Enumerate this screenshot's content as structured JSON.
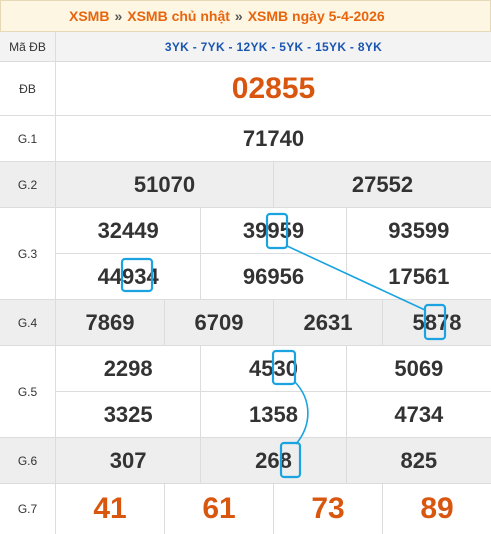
{
  "breadcrumb": {
    "item1": "XSMB",
    "sep": "»",
    "item2": "XSMB chủ nhật",
    "item3": "XSMB ngày 5-4-2026"
  },
  "codes_row": {
    "label": "Mã ĐB",
    "value": "3YK - 7YK - 12YK - 5YK - 15YK - 8YK"
  },
  "prizes": {
    "db": {
      "label": "ĐB",
      "numbers": [
        "02855"
      ]
    },
    "g1": {
      "label": "G.1",
      "numbers": [
        "71740"
      ]
    },
    "g2": {
      "label": "G.2",
      "numbers": [
        "51070",
        "27552"
      ]
    },
    "g3": {
      "label": "G.3",
      "numbers": [
        "32449",
        "39959",
        "93599",
        "44934",
        "96956",
        "17561"
      ]
    },
    "g4": {
      "label": "G.4",
      "numbers": [
        "7869",
        "6709",
        "2631",
        "5878"
      ]
    },
    "g5": {
      "label": "G.5",
      "numbers": [
        "2298",
        "4530",
        "5069",
        "3325",
        "1358",
        "4734"
      ]
    },
    "g6": {
      "label": "G.6",
      "numbers": [
        "307",
        "268",
        "825"
      ]
    },
    "g7": {
      "label": "G.7",
      "numbers": [
        "41",
        "61",
        "73",
        "89"
      ]
    }
  },
  "colors": {
    "highlight": "#1aa3e0",
    "special": "#d9560f",
    "codes": "#1a56b0"
  }
}
